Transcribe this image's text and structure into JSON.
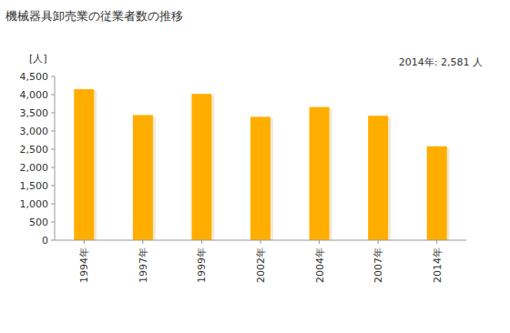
{
  "chart_data": {
    "type": "bar",
    "title": "機械器具卸売業の従業者数の推移",
    "y_label": "[人]",
    "annotation": "2014年: 2,581 人",
    "categories": [
      "1994年",
      "1997年",
      "1999年",
      "2002年",
      "2004年",
      "2007年",
      "2014年"
    ],
    "values": [
      4150,
      3440,
      4020,
      3390,
      3660,
      3420,
      2581
    ],
    "color": "#ffae00",
    "ylim": [
      0,
      4500
    ],
    "yticks": [
      0,
      500,
      {
        "value": 1000,
        "label": "1,000"
      },
      {
        "value": 1500,
        "label": "1,500"
      },
      {
        "value": 2000,
        "label": "2,000"
      },
      {
        "value": 2500,
        "label": "2,500"
      },
      {
        "value": 3000,
        "label": "3,000"
      },
      {
        "value": 3500,
        "label": "3,500"
      },
      {
        "value": 4000,
        "label": "4,000"
      },
      {
        "value": 4500,
        "label": "4,500"
      }
    ],
    "grid": false
  }
}
